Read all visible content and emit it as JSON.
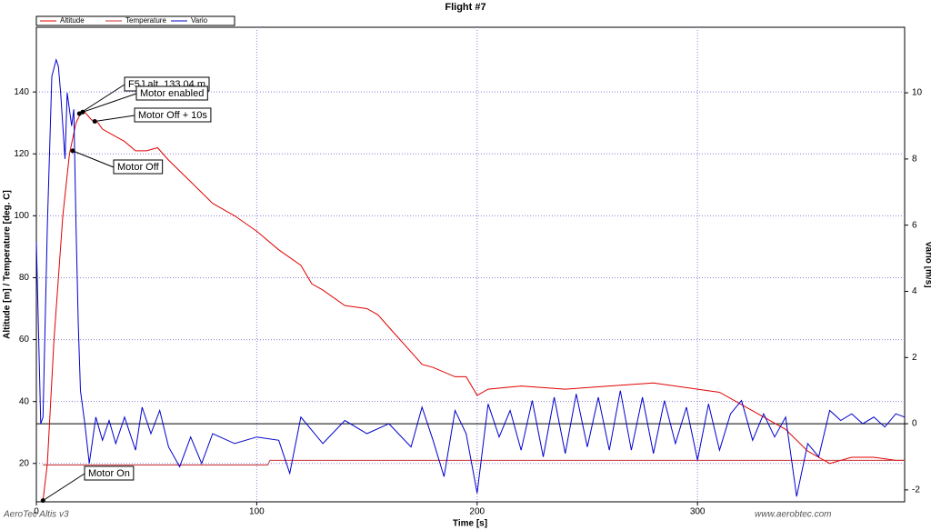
{
  "chart_data": {
    "type": "line",
    "title": "Flight #7",
    "x_label": "Time [s]",
    "y_label": "Altitude [m] / Temperature [deg. C]",
    "y2_label": "Vario [m/s]",
    "footer_left": "AeroTec Altis v3",
    "footer_right": "www.aerobtec.com",
    "xlim": [
      0,
      394
    ],
    "xticks": [
      0,
      100,
      200,
      300
    ],
    "ylim": [
      7.6,
      160.9
    ],
    "yticks": [
      20,
      40,
      60,
      80,
      100,
      120,
      140
    ],
    "y2lim": [
      -2.36,
      11.98
    ],
    "y2ticks": [
      -2,
      0,
      2,
      4,
      6,
      8,
      10
    ],
    "grid": true,
    "legend": "top-left",
    "series": [
      {
        "name": "Altitude",
        "color": "#e00000",
        "x": [
          3,
          5,
          8,
          12,
          15,
          18,
          20,
          22,
          25,
          28,
          30,
          35,
          40,
          45,
          50,
          55,
          60,
          70,
          80,
          90,
          100,
          110,
          120,
          125,
          130,
          140,
          150,
          155,
          160,
          170,
          175,
          180,
          190,
          195,
          200,
          205,
          220,
          240,
          260,
          280,
          300,
          310,
          320,
          330,
          340,
          350,
          360,
          370,
          380,
          390,
          394
        ],
        "values": [
          8,
          20,
          60,
          100,
          120,
          130,
          133,
          133.5,
          131,
          130,
          128,
          126,
          124,
          121,
          121,
          122,
          118,
          111,
          104,
          100,
          95,
          89,
          84,
          78,
          76,
          71,
          70,
          68,
          64,
          56,
          52,
          51,
          48,
          48,
          42,
          44,
          45,
          44,
          45,
          46,
          44,
          43,
          39,
          35,
          31,
          24,
          20,
          22,
          22,
          21,
          21
        ]
      },
      {
        "name": "Temperature",
        "color": "#c83030",
        "x": [
          3,
          105,
          106,
          394
        ],
        "values": [
          19.5,
          19.5,
          21,
          21
        ]
      },
      {
        "name": "Vario",
        "color": "#0000cc",
        "axis": "y2",
        "x": [
          0,
          2,
          3,
          5,
          7,
          9,
          10,
          11,
          12,
          13,
          14,
          16,
          17,
          18,
          19,
          20,
          22,
          24,
          27,
          30,
          33,
          36,
          40,
          45,
          48,
          52,
          56,
          60,
          65,
          70,
          75,
          80,
          90,
          100,
          110,
          115,
          120,
          130,
          140,
          150,
          160,
          170,
          175,
          180,
          185,
          190,
          195,
          200,
          205,
          210,
          215,
          220,
          225,
          230,
          235,
          240,
          245,
          250,
          255,
          260,
          265,
          270,
          275,
          280,
          285,
          290,
          295,
          300,
          305,
          310,
          315,
          320,
          325,
          330,
          335,
          340,
          345,
          350,
          355,
          360,
          365,
          370,
          375,
          380,
          385,
          390,
          394
        ],
        "values": [
          5.5,
          0,
          0.2,
          6,
          10.5,
          11,
          10.8,
          10,
          9,
          8,
          10,
          9,
          9.5,
          6,
          3,
          1,
          0,
          -1.2,
          0.2,
          -0.5,
          0.1,
          -0.6,
          0.2,
          -0.8,
          0.5,
          -0.3,
          0.4,
          -0.7,
          -1.3,
          -0.4,
          -1.2,
          -0.3,
          -0.6,
          -0.4,
          -0.5,
          -1.5,
          0.2,
          -0.6,
          0.1,
          -0.3,
          0,
          -0.7,
          0.5,
          -0.5,
          -1.6,
          0.4,
          -0.3,
          -2.1,
          0.6,
          -0.4,
          0.4,
          -0.8,
          0.7,
          -1.0,
          0.8,
          -0.9,
          0.9,
          -0.7,
          0.8,
          -0.8,
          1.0,
          -0.8,
          0.8,
          -0.9,
          0.7,
          -0.6,
          0.5,
          -1.1,
          0.6,
          -0.8,
          0.3,
          0.7,
          -0.5,
          0.3,
          -0.4,
          0.2,
          -2.2,
          -0.6,
          -1.0,
          0.4,
          0.1,
          0.3,
          0,
          0.2,
          -0.1,
          0.3,
          0.2
        ]
      }
    ],
    "annotations": [
      {
        "text": "F5J alt. 133,04 m",
        "x": 19.5,
        "y": 133
      },
      {
        "text": "Motor enabled",
        "x": 21,
        "y": 133.5
      },
      {
        "text": "Motor Off + 10s",
        "x": 26.5,
        "y": 130.5
      },
      {
        "text": "Motor Off",
        "x": 16.5,
        "y": 121
      },
      {
        "text": "Motor On",
        "x": 3,
        "y": 8
      }
    ]
  }
}
